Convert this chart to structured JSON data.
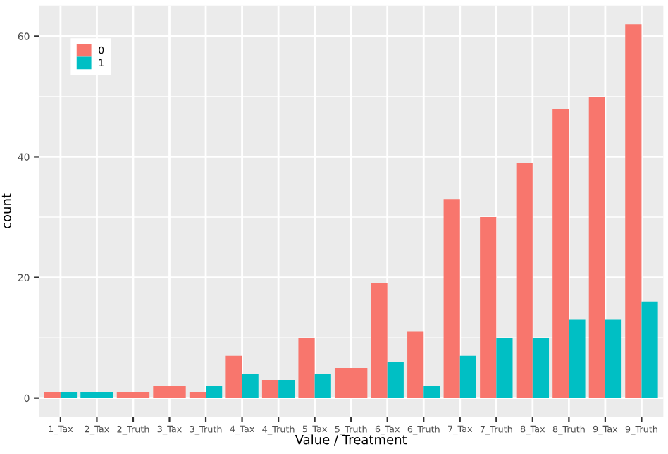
{
  "chart_data": {
    "type": "bar",
    "xlabel": "Value / Treatment",
    "ylabel": "count",
    "categories": [
      "1_Tax",
      "2_Tax",
      "2_Truth",
      "3_Tax",
      "3_Truth",
      "4_Tax",
      "4_Truth",
      "5_Tax",
      "5_Truth",
      "6_Tax",
      "6_Truth",
      "7_Tax",
      "7_Truth",
      "8_Tax",
      "8_Truth",
      "9_Tax",
      "9_Truth"
    ],
    "series": [
      {
        "name": "0",
        "color": "#f8766d",
        "values": [
          1,
          null,
          1,
          2,
          1,
          7,
          3,
          10,
          5,
          19,
          11,
          33,
          30,
          39,
          48,
          50,
          62
        ]
      },
      {
        "name": "1",
        "color": "#00bfc4",
        "values": [
          1,
          1,
          null,
          null,
          2,
          4,
          3,
          4,
          null,
          6,
          2,
          7,
          10,
          10,
          13,
          13,
          16
        ]
      }
    ],
    "ylim": [
      -3.1,
      65.1
    ],
    "yticks": [
      0,
      20,
      40,
      60
    ],
    "grid": true,
    "legend": "top left"
  }
}
